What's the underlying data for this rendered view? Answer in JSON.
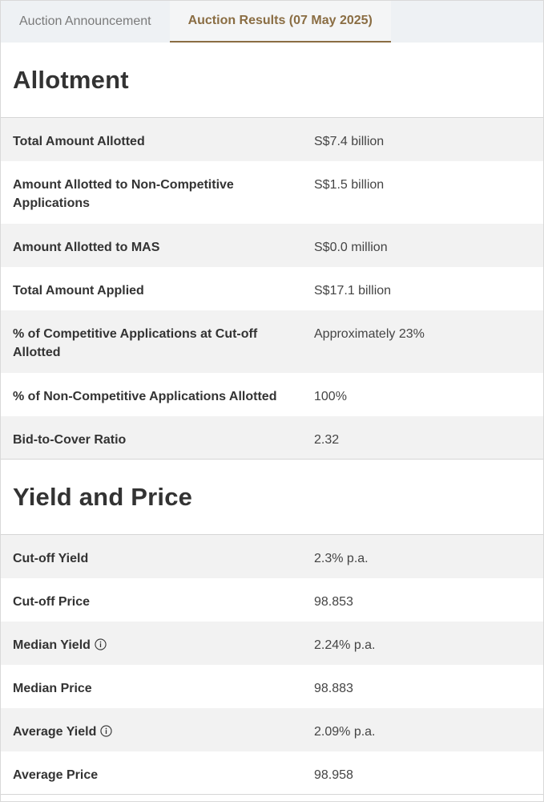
{
  "tabs": [
    {
      "label": "Auction Announcement"
    },
    {
      "label": "Auction Results (07 May 2025)"
    }
  ],
  "allotment": {
    "title": "Allotment",
    "rows": [
      {
        "label": "Total Amount Allotted",
        "value": "S$7.4 billion"
      },
      {
        "label": "Amount Allotted to Non-Competitive Applications",
        "value": "S$1.5 billion"
      },
      {
        "label": "Amount Allotted to MAS",
        "value": "S$0.0 million"
      },
      {
        "label": "Total Amount Applied",
        "value": "S$17.1 billion"
      },
      {
        "label": "% of Competitive Applications at Cut-off Allotted",
        "value": "Approximately 23%"
      },
      {
        "label": "% of Non-Competitive Applications Allotted",
        "value": "100%"
      },
      {
        "label": "Bid-to-Cover Ratio",
        "value": "2.32"
      }
    ]
  },
  "yield_price": {
    "title": "Yield and Price",
    "rows": [
      {
        "label": "Cut-off Yield",
        "value": "2.3% p.a."
      },
      {
        "label": "Cut-off Price",
        "value": "98.853"
      },
      {
        "label": "Median Yield",
        "value": "2.24% p.a."
      },
      {
        "label": "Median Price",
        "value": "98.883"
      },
      {
        "label": "Average Yield",
        "value": "2.09% p.a."
      },
      {
        "label": "Average Price",
        "value": "98.958"
      }
    ]
  },
  "icons": {
    "info": "info-circle-icon"
  },
  "colors": {
    "accent": "#8a6d43",
    "tab_bar": "#eef1f4",
    "row_shade": "#f2f2f2"
  }
}
